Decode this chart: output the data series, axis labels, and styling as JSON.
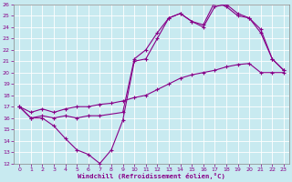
{
  "xlabel": "Windchill (Refroidissement éolien,°C)",
  "background_color": "#c8eaf0",
  "line_color": "#880088",
  "grid_color": "#ffffff",
  "xlim": [
    -0.5,
    23.5
  ],
  "ylim": [
    12,
    26
  ],
  "xticks": [
    0,
    1,
    2,
    3,
    4,
    5,
    6,
    7,
    8,
    9,
    10,
    11,
    12,
    13,
    14,
    15,
    16,
    17,
    18,
    19,
    20,
    21,
    22,
    23
  ],
  "yticks": [
    12,
    13,
    14,
    15,
    16,
    17,
    18,
    19,
    20,
    21,
    22,
    23,
    24,
    25,
    26
  ],
  "series": [
    {
      "x": [
        0,
        1,
        2,
        3,
        4,
        5,
        6,
        7,
        8,
        9,
        10,
        11,
        12,
        13,
        14,
        15,
        16,
        17,
        18,
        19,
        20,
        21,
        22,
        23
      ],
      "y": [
        17,
        16,
        16,
        15.3,
        14.2,
        13.2,
        12.8,
        12.0,
        13.2,
        15.8,
        21.0,
        21.2,
        23.0,
        24.8,
        25.2,
        24.5,
        24.2,
        26.2,
        25.8,
        25.0,
        24.8,
        23.5,
        21.2,
        20.2
      ]
    },
    {
      "x": [
        0,
        1,
        2,
        3,
        4,
        5,
        6,
        7,
        8,
        9,
        10,
        11,
        12,
        13,
        14,
        15,
        16,
        17,
        18,
        19,
        20,
        21,
        22,
        23
      ],
      "y": [
        17,
        16.5,
        16.8,
        16.5,
        16.8,
        17.0,
        17.0,
        17.2,
        17.3,
        17.5,
        17.8,
        18.0,
        18.5,
        19.0,
        19.5,
        19.8,
        20.0,
        20.2,
        20.5,
        20.7,
        20.8,
        20.0,
        20.0,
        20.0
      ]
    },
    {
      "x": [
        0,
        1,
        2,
        3,
        4,
        5,
        6,
        7,
        9,
        10,
        11,
        12,
        13,
        14,
        15,
        16,
        17,
        18,
        19,
        20,
        21,
        22,
        23
      ],
      "y": [
        17,
        16,
        16.2,
        16.0,
        16.2,
        16.0,
        16.2,
        16.2,
        16.5,
        21.2,
        22.0,
        23.5,
        24.8,
        25.2,
        24.5,
        24.0,
        25.8,
        26.0,
        25.2,
        24.8,
        23.8,
        21.2,
        20.2
      ]
    }
  ]
}
